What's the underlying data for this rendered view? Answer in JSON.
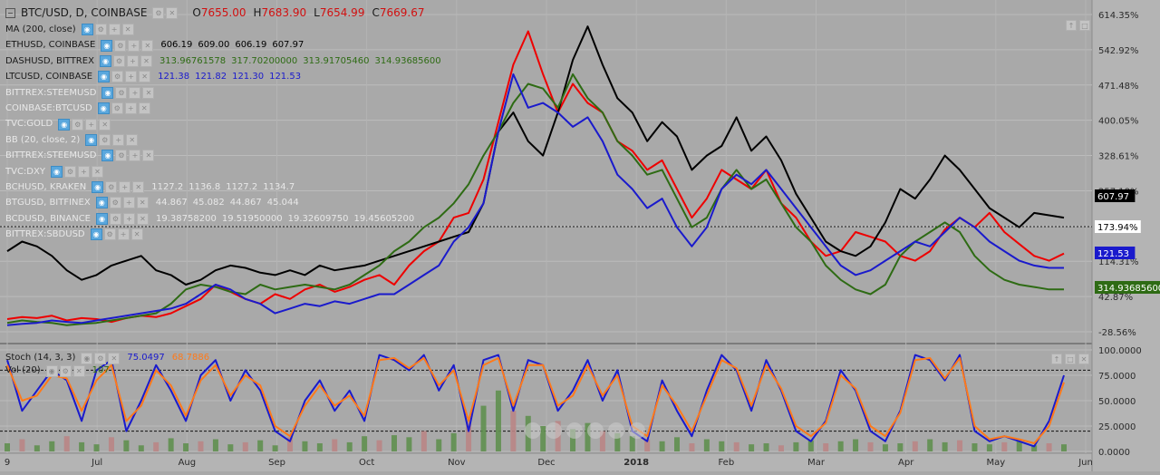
{
  "header": {
    "symbol": "BTC/USD, D, COINBASE",
    "ohlc": [
      {
        "label": "O",
        "value": "7655.00"
      },
      {
        "label": "H",
        "value": "7683.90"
      },
      {
        "label": "L",
        "value": "7654.99"
      },
      {
        "label": "C",
        "value": "7669.67"
      }
    ]
  },
  "legend": [
    {
      "name": "MA (200, close)",
      "values": [],
      "color": "#1a1a1a",
      "faded": false
    },
    {
      "name": "ETHUSD, COINBASE",
      "values": [
        "606.19",
        "609.00",
        "606.19",
        "607.97"
      ],
      "color": "#000000",
      "faded": false
    },
    {
      "name": "DASHUSD, BITTREX",
      "values": [
        "313.96761578",
        "317.70200000",
        "313.91705460",
        "314.93685600"
      ],
      "color": "#2e6b14",
      "faded": false
    },
    {
      "name": "LTCUSD, COINBASE",
      "values": [
        "121.38",
        "121.82",
        "121.30",
        "121.53"
      ],
      "color": "#1a1acc",
      "faded": false
    },
    {
      "name": "BITTREX:STEEMUSD",
      "values": [],
      "color": "#1a1a1a",
      "faded": true
    },
    {
      "name": "COINBASE:BTCUSD",
      "values": [],
      "color": "#1a1a1a",
      "faded": true
    },
    {
      "name": "TVC:GOLD",
      "values": [],
      "color": "#1a1a1a",
      "faded": true
    },
    {
      "name": "BB (20, close, 2)",
      "values": [],
      "color": "#1a1a1a",
      "faded": true
    },
    {
      "name": "BITTREX:STEEMUSD",
      "values": [],
      "color": "#1a1a1a",
      "faded": true
    },
    {
      "name": "TVC:DXY",
      "values": [],
      "color": "#1a1a1a",
      "faded": true
    },
    {
      "name": "BCHUSD, KRAKEN",
      "values": [
        "1127.2",
        "1136.8",
        "1127.2",
        "1134.7"
      ],
      "color": "#e8e8e8",
      "faded": true
    },
    {
      "name": "BTGUSD, BITFINEX",
      "values": [
        "44.867",
        "45.082",
        "44.867",
        "45.044"
      ],
      "color": "#e8e8e8",
      "faded": true
    },
    {
      "name": "BCDUSD, BINANCE",
      "values": [
        "19.38758200",
        "19.51950000",
        "19.32609750",
        "19.45605200"
      ],
      "color": "#e8e8e8",
      "faded": true
    },
    {
      "name": "BITTREX:SBDUSD",
      "values": [],
      "color": "#1a1a1a",
      "faded": true
    }
  ],
  "stoch_legend": [
    {
      "name": "Stoch (14, 3, 3)",
      "values": [
        "75.0497",
        "68.7886"
      ],
      "colors": [
        "#1a1acc",
        "#ff7a1a"
      ]
    },
    {
      "name": "Vol (20)",
      "values": [
        "107"
      ],
      "colors": [
        "#2e6b14"
      ]
    }
  ],
  "chart_data": [
    {
      "type": "line",
      "title": "BTC/USD, D, COINBASE",
      "x_ticks": [
        "9",
        "Jul",
        "Aug",
        "Sep",
        "Oct",
        "Nov",
        "Dec",
        "2018",
        "Feb",
        "Mar",
        "Apr",
        "May",
        "Jun"
      ],
      "y_ticks": [
        "614.35%",
        "542.92%",
        "471.48%",
        "400.05%",
        "328.61%",
        "257.18%",
        "185.74%",
        "114.31%",
        "42.87%",
        "-28.56%"
      ],
      "ylim": [
        -50,
        625
      ],
      "y_unit": "%",
      "grid": true,
      "x": [
        0,
        5,
        10,
        15,
        20,
        25,
        30,
        35,
        40,
        45,
        50,
        55,
        60,
        65,
        70,
        75,
        80,
        85,
        90,
        95,
        100,
        105,
        110,
        115,
        120,
        125,
        130,
        135,
        140,
        145,
        150,
        155,
        160,
        165,
        170,
        175,
        180,
        185,
        190,
        195,
        200,
        205,
        210,
        215,
        220,
        225,
        230,
        235,
        240,
        245,
        250,
        255,
        260,
        265,
        270,
        275,
        280,
        285,
        290,
        295,
        300,
        305,
        310,
        315,
        320,
        325,
        330,
        335,
        340,
        345,
        350,
        355
      ],
      "series": [
        {
          "name": "BTC/USD, D, COINBASE",
          "color": "#ee0000",
          "values": [
            -12,
            -8,
            -10,
            -5,
            -15,
            -10,
            -12,
            -18,
            -10,
            -5,
            -8,
            0,
            15,
            30,
            60,
            45,
            30,
            20,
            40,
            30,
            50,
            60,
            45,
            55,
            70,
            80,
            60,
            100,
            130,
            150,
            200,
            210,
            280,
            400,
            520,
            590,
            500,
            420,
            480,
            440,
            420,
            360,
            340,
            300,
            320,
            260,
            200,
            240,
            300,
            280,
            260,
            300,
            230,
            200,
            150,
            120,
            130,
            170,
            160,
            150,
            120,
            110,
            130,
            175,
            200,
            180,
            210,
            170,
            145,
            120,
            110,
            125
          ]
        },
        {
          "name": "ETHUSD, COINBASE",
          "color": "#000000",
          "values": [
            130,
            150,
            140,
            120,
            90,
            70,
            80,
            100,
            110,
            120,
            90,
            80,
            60,
            70,
            90,
            100,
            95,
            85,
            80,
            90,
            80,
            100,
            90,
            95,
            100,
            110,
            120,
            130,
            140,
            150,
            160,
            170,
            230,
            380,
            420,
            360,
            330,
            420,
            530,
            600,
            520,
            450,
            420,
            360,
            400,
            370,
            300,
            330,
            350,
            410,
            340,
            370,
            320,
            250,
            200,
            150,
            130,
            120,
            140,
            190,
            260,
            240,
            280,
            330,
            300,
            260,
            220,
            200,
            180,
            210,
            205,
            200
          ]
        },
        {
          "name": "DASHUSD, BITTREX",
          "color": "#2e6b14",
          "values": [
            -20,
            -15,
            -18,
            -20,
            -25,
            -22,
            -20,
            -15,
            -10,
            -5,
            0,
            20,
            50,
            60,
            55,
            45,
            40,
            60,
            50,
            55,
            60,
            55,
            50,
            60,
            80,
            100,
            130,
            150,
            180,
            200,
            230,
            270,
            330,
            380,
            440,
            480,
            470,
            430,
            500,
            450,
            420,
            360,
            330,
            290,
            300,
            240,
            180,
            200,
            260,
            300,
            260,
            280,
            230,
            180,
            150,
            100,
            70,
            50,
            40,
            60,
            120,
            150,
            170,
            190,
            170,
            120,
            90,
            70,
            60,
            55,
            50,
            50
          ]
        },
        {
          "name": "LTCUSD, COINBASE",
          "color": "#1a1acc",
          "values": [
            -25,
            -22,
            -20,
            -15,
            -18,
            -20,
            -15,
            -10,
            -5,
            0,
            5,
            10,
            20,
            40,
            60,
            50,
            30,
            20,
            0,
            10,
            20,
            15,
            25,
            20,
            30,
            40,
            40,
            60,
            80,
            100,
            150,
            180,
            230,
            380,
            500,
            430,
            440,
            420,
            390,
            410,
            360,
            290,
            260,
            220,
            240,
            180,
            140,
            180,
            260,
            290,
            270,
            300,
            260,
            220,
            180,
            140,
            100,
            80,
            90,
            110,
            130,
            150,
            140,
            170,
            200,
            180,
            150,
            130,
            110,
            100,
            95,
            95
          ]
        }
      ],
      "price_labels": [
        {
          "text": "607.97",
          "bg": "#000000",
          "fg": "#ffffff"
        },
        {
          "text": "173.94%",
          "bg": "#ffffff",
          "fg": "#000000"
        },
        {
          "text": "121.53",
          "bg": "#1a1acc",
          "fg": "#ffffff"
        },
        {
          "text": "314.93685600",
          "bg": "#2e6b14",
          "fg": "#ffffff"
        }
      ]
    },
    {
      "type": "line",
      "title": "Stoch (14, 3, 3)",
      "y_ticks": [
        "100.0000",
        "75.0000",
        "50.0000",
        "25.0000",
        "0.0000"
      ],
      "ylim": [
        0,
        100
      ],
      "bands": [
        80,
        20
      ],
      "x": [
        0,
        5,
        10,
        15,
        20,
        25,
        30,
        35,
        40,
        45,
        50,
        55,
        60,
        65,
        70,
        75,
        80,
        85,
        90,
        95,
        100,
        105,
        110,
        115,
        120,
        125,
        130,
        135,
        140,
        145,
        150,
        155,
        160,
        165,
        170,
        175,
        180,
        185,
        190,
        195,
        200,
        205,
        210,
        215,
        220,
        225,
        230,
        235,
        240,
        245,
        250,
        255,
        260,
        265,
        270,
        275,
        280,
        285,
        290,
        295,
        300,
        305,
        310,
        315,
        320,
        325,
        330,
        335,
        340,
        345,
        350,
        355
      ],
      "series": [
        {
          "name": "%K",
          "color": "#1a1acc",
          "values": [
            90,
            40,
            60,
            80,
            70,
            30,
            80,
            90,
            20,
            50,
            85,
            60,
            30,
            75,
            90,
            50,
            80,
            60,
            20,
            10,
            50,
            70,
            40,
            60,
            30,
            95,
            90,
            80,
            95,
            60,
            85,
            20,
            90,
            95,
            40,
            90,
            85,
            40,
            60,
            90,
            50,
            80,
            20,
            10,
            70,
            40,
            15,
            60,
            95,
            80,
            40,
            90,
            60,
            20,
            10,
            30,
            80,
            60,
            20,
            10,
            40,
            95,
            90,
            70,
            95,
            20,
            10,
            15,
            10,
            5,
            30,
            75
          ]
        },
        {
          "name": "%D",
          "color": "#ff7a1a",
          "values": [
            85,
            50,
            55,
            75,
            72,
            40,
            70,
            85,
            30,
            45,
            80,
            65,
            35,
            70,
            85,
            55,
            75,
            65,
            25,
            15,
            45,
            65,
            45,
            55,
            35,
            90,
            92,
            82,
            92,
            65,
            80,
            30,
            85,
            92,
            45,
            85,
            85,
            45,
            55,
            85,
            55,
            75,
            25,
            15,
            65,
            45,
            20,
            55,
            90,
            82,
            45,
            85,
            62,
            25,
            15,
            28,
            75,
            62,
            25,
            15,
            38,
            90,
            92,
            72,
            92,
            25,
            12,
            15,
            12,
            8,
            25,
            68
          ]
        }
      ],
      "volume": [
        8,
        12,
        6,
        10,
        15,
        9,
        7,
        14,
        11,
        6,
        9,
        13,
        8,
        10,
        12,
        7,
        9,
        11,
        6,
        14,
        10,
        8,
        12,
        9,
        15,
        11,
        16,
        14,
        20,
        12,
        18,
        30,
        45,
        60,
        40,
        35,
        25,
        30,
        22,
        28,
        20,
        18,
        15,
        12,
        10,
        14,
        8,
        12,
        10,
        9,
        7,
        8,
        6,
        9,
        11,
        8,
        10,
        12,
        9,
        7,
        8,
        10,
        12,
        9,
        11,
        8,
        7,
        9,
        10,
        6,
        8,
        7
      ]
    }
  ]
}
